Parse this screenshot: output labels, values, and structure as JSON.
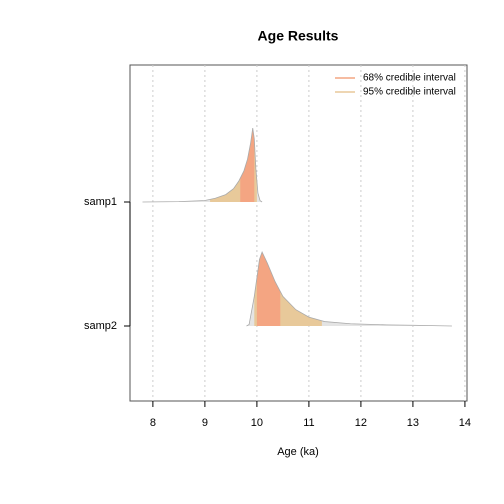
{
  "chart_data": {
    "type": "density",
    "title": "Age Results",
    "xlabel": "Age (ka)",
    "categories": [
      "samp1",
      "samp2"
    ],
    "xlim": [
      7.56,
      14.04
    ],
    "xticks": [
      8,
      9,
      10,
      11,
      12,
      13,
      14
    ],
    "grid": true,
    "legend_position": "top-right",
    "legend": [
      {
        "name": "68% credible interval",
        "color": "#f4a582"
      },
      {
        "name": "95% credible interval",
        "color": "#e8c99a"
      }
    ],
    "densities": [
      {
        "x": [
          7.8,
          8.5,
          9.0,
          9.2,
          9.4,
          9.55,
          9.65,
          9.75,
          9.82,
          9.88,
          9.92,
          9.95,
          9.98,
          10.02,
          10.06,
          10.1
        ],
        "values": [
          0,
          0.005,
          0.02,
          0.05,
          0.1,
          0.18,
          0.28,
          0.42,
          0.58,
          0.8,
          1.0,
          0.85,
          0.45,
          0.12,
          0.02,
          0
        ],
        "interval_68": [
          9.68,
          9.95
        ],
        "interval_95": [
          9.1,
          10.0
        ]
      },
      {
        "x": [
          9.8,
          9.85,
          9.95,
          10.05,
          10.1,
          10.2,
          10.35,
          10.5,
          10.75,
          11.0,
          11.3,
          11.8,
          12.5,
          13.0,
          13.75
        ],
        "values": [
          0,
          0.02,
          0.4,
          0.9,
          1.0,
          0.85,
          0.6,
          0.4,
          0.22,
          0.12,
          0.06,
          0.03,
          0.015,
          0.01,
          0
        ],
        "interval_68": [
          10.0,
          10.45
        ],
        "interval_95": [
          9.95,
          11.25
        ]
      }
    ]
  }
}
